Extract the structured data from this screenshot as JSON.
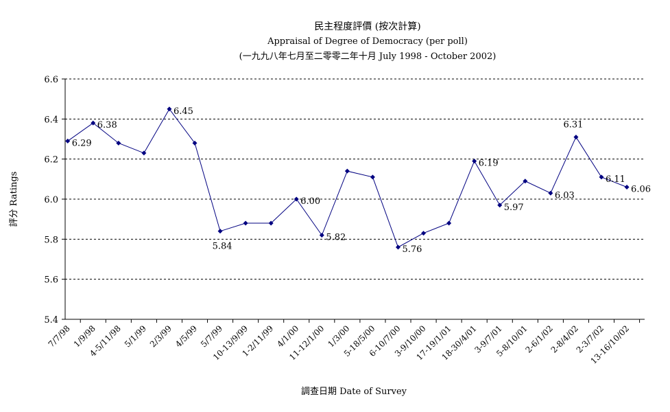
{
  "chart_data": {
    "type": "line",
    "title": "民主程度評價 (按次計算)",
    "subtitle": "Appraisal of Degree of Democracy (per poll)",
    "subtitle2": "(一九九八年七月至二零零二年十月 July 1998 - October 2002)",
    "xlabel": "調查日期 Date of Survey",
    "ylabel": "評分 Ratings",
    "ylim": [
      5.4,
      6.6
    ],
    "yticks": [
      "6.6",
      "6.4",
      "6.2",
      "6.0",
      "5.8",
      "5.6",
      "5.4"
    ],
    "grid": "horizontal-dashed",
    "categories": [
      "7/7/98",
      "1/9/98",
      "4-5/11/98",
      "5/1/99",
      "2/3/99",
      "4/5/99",
      "5/7/99",
      "10-13/9/99",
      "1-2/11/99",
      "4/1/00",
      "11-12/1/00",
      "1/3/00",
      "5-18/5/00",
      "6-10/7/00",
      "3-9/10/00",
      "17-19/1/01",
      "18-30/4/01",
      "3-9/7/01",
      "5-8/10/01",
      "2-6/1/02",
      "2-8/4/02",
      "2-3/7/02",
      "13-16/10/02"
    ],
    "series": [
      {
        "values": [
          6.29,
          6.38,
          6.28,
          6.23,
          6.45,
          6.28,
          5.84,
          5.88,
          5.88,
          6.0,
          5.82,
          6.14,
          6.11,
          5.76,
          5.83,
          5.88,
          6.19,
          5.97,
          6.09,
          6.03,
          6.31,
          6.11,
          6.06
        ],
        "labels": [
          "6.29",
          "6.38",
          "",
          "",
          "6.45",
          "",
          "5.84",
          "",
          "",
          "6.00",
          "5.82",
          "",
          "",
          "5.76",
          "",
          "",
          "6.19",
          "5.97",
          "",
          "6.03",
          "6.31",
          "6.11",
          "6.06"
        ]
      }
    ],
    "color": "#000080"
  }
}
